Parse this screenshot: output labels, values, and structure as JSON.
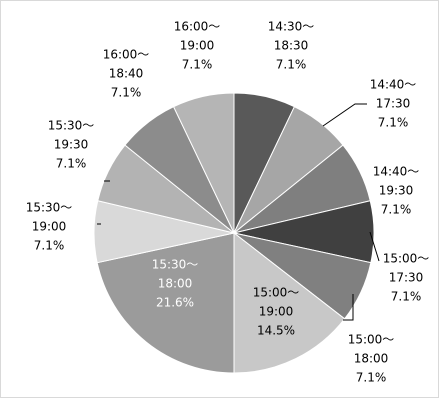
{
  "chart_data": {
    "type": "pie",
    "title": "",
    "legend": "none",
    "start": "12 o'clock",
    "direction": "clockwise",
    "slices": [
      {
        "lines": [
          "14:30～",
          "18:30",
          "7.1%"
        ],
        "value": 7.1,
        "color": "#595959",
        "label_color": "#000000"
      },
      {
        "lines": [
          "14:40～",
          "17:30",
          "7.1%"
        ],
        "value": 7.1,
        "color": "#a6a6a6",
        "label_color": "#000000"
      },
      {
        "lines": [
          "14:40～",
          "19:30",
          "7.1%"
        ],
        "value": 7.1,
        "color": "#7f7f7f",
        "label_color": "#000000"
      },
      {
        "lines": [
          "15:00～",
          "17:30",
          "7.1%"
        ],
        "value": 7.1,
        "color": "#404040",
        "label_color": "#000000"
      },
      {
        "lines": [
          "15:00～",
          "18:00",
          "7.1%"
        ],
        "value": 7.1,
        "color": "#808080",
        "label_color": "#000000"
      },
      {
        "lines": [
          "15:00～",
          "19:00",
          "14.5%"
        ],
        "value": 14.5,
        "color": "#c8c8c8",
        "label_color": "#000000"
      },
      {
        "lines": [
          "15:30～",
          "18:00",
          "21.6%"
        ],
        "value": 21.6,
        "color": "#9b9b9b",
        "label_color": "#ffffff"
      },
      {
        "lines": [
          "15:30～",
          "19:00",
          "7.1%"
        ],
        "value": 7.1,
        "color": "#d9d9d9",
        "label_color": "#000000"
      },
      {
        "lines": [
          "15:30～",
          "19:30",
          "7.1%"
        ],
        "value": 7.1,
        "color": "#b3b3b3",
        "label_color": "#000000"
      },
      {
        "lines": [
          "16:00～",
          "18:40",
          "7.1%"
        ],
        "value": 7.1,
        "color": "#8c8c8c",
        "label_color": "#000000"
      },
      {
        "lines": [
          "16:00～",
          "19:00",
          "7.1%"
        ],
        "value": 7.1,
        "color": "#b5b5b5",
        "label_color": "#000000"
      }
    ]
  }
}
